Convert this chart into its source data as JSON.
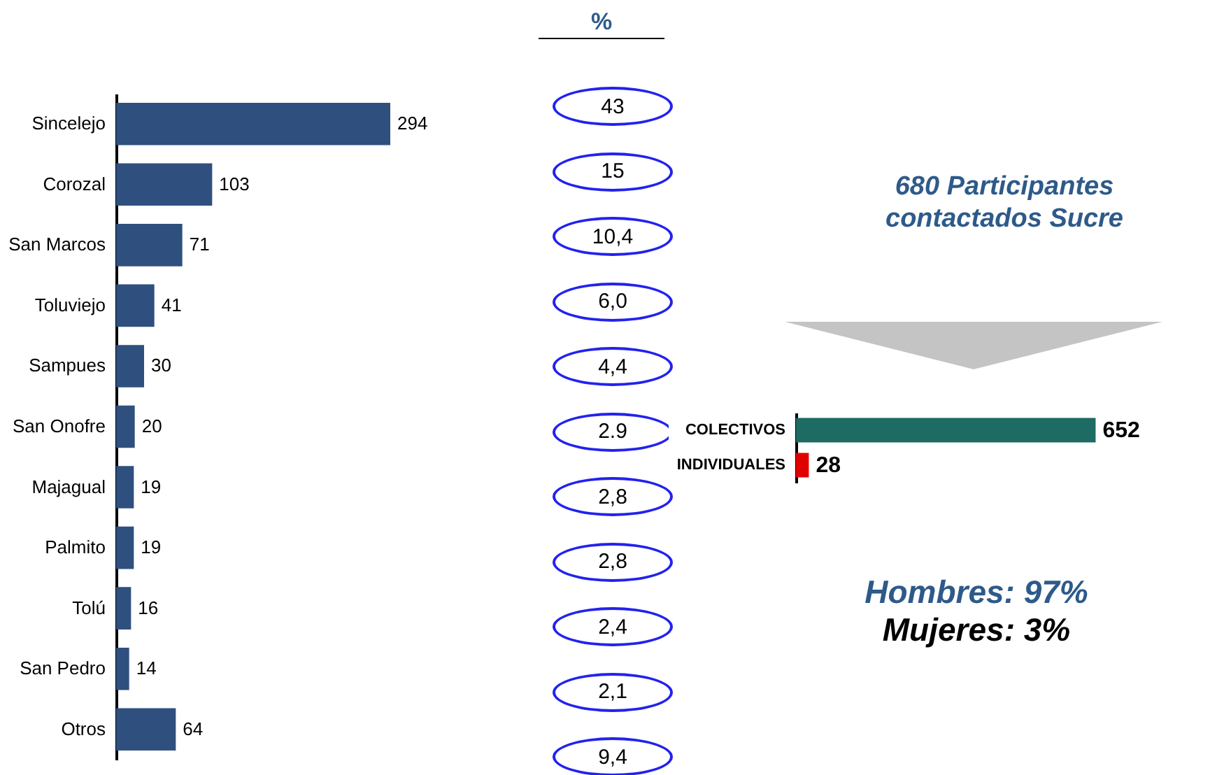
{
  "chart_data": [
    {
      "type": "bar",
      "orientation": "horizontal",
      "categories": [
        "Sincelejo",
        "Corozal",
        "San Marcos",
        "Toluviejo",
        "Sampues",
        "San Onofre",
        "Majagual",
        "Palmito",
        "Tolú",
        "San Pedro",
        "Otros"
      ],
      "values": [
        294,
        103,
        71,
        41,
        30,
        20,
        19,
        19,
        16,
        14,
        64
      ],
      "color": "#2f507e",
      "data_labels": true
    },
    {
      "type": "other",
      "title": "%",
      "annotations": [
        "43",
        "15",
        "10,4",
        "6,0",
        "4,4",
        "2.9",
        "2,8",
        "2,8",
        "2,4",
        "2,1",
        "9,4"
      ]
    },
    {
      "type": "bar",
      "orientation": "horizontal",
      "title": "680 Participantes contactados Sucre",
      "categories": [
        "COLECTIVOS",
        "INDIVIDUALES"
      ],
      "values": [
        652,
        28
      ],
      "colors": [
        "#1d6b62",
        "#e00000"
      ],
      "data_labels": true,
      "annotations": [
        "Hombres: 97%",
        "Mujeres: 3%"
      ]
    }
  ]
}
